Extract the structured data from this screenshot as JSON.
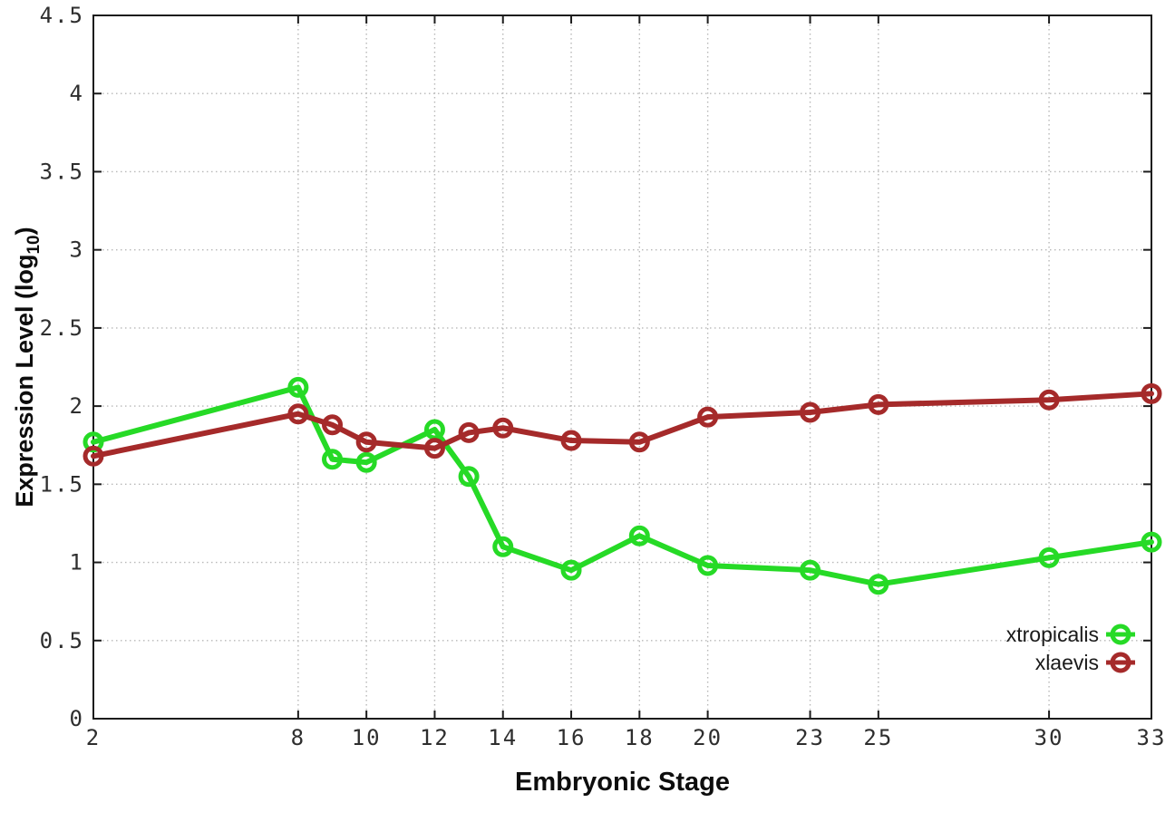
{
  "page": {
    "background": "#ffffff"
  },
  "chart_data": {
    "type": "line",
    "title": "",
    "xlabel": "Embryonic Stage",
    "ylabel": "Expression Level (log10)",
    "ylabel_parts": {
      "pre": "Expression Level (log",
      "sub": "10",
      "post": ")"
    },
    "x": [
      2,
      8,
      9,
      10,
      12,
      13,
      14,
      16,
      18,
      20,
      23,
      25,
      30,
      33
    ],
    "series": [
      {
        "name": "xtropicalis",
        "color": "#26da26",
        "marker": "open-circle",
        "values": [
          1.77,
          2.12,
          1.66,
          1.64,
          1.85,
          1.55,
          1.1,
          0.95,
          1.17,
          0.98,
          0.95,
          0.86,
          1.03,
          1.13
        ]
      },
      {
        "name": "xlaevis",
        "color": "#a52a2a",
        "marker": "open-circle",
        "values": [
          1.68,
          1.95,
          1.88,
          1.77,
          1.73,
          1.83,
          1.86,
          1.78,
          1.77,
          1.93,
          1.96,
          2.01,
          2.04,
          2.08
        ]
      }
    ],
    "xlim": [
      2,
      33
    ],
    "ylim": [
      0,
      4.5
    ],
    "xticks": [
      2,
      8,
      10,
      12,
      14,
      16,
      18,
      20,
      23,
      25,
      30,
      33
    ],
    "yticks": [
      0,
      0.5,
      1,
      1.5,
      2,
      2.5,
      3,
      3.5,
      4,
      4.5
    ],
    "grid": true,
    "grid_style": "dotted",
    "grid_color": "#b8b8b8",
    "axis_color": "#1c1c1c",
    "tick_label_color": "#2e2e2e",
    "legend": {
      "position": "inside-bottom-right",
      "entries": [
        "xtropicalis",
        "xlaevis"
      ]
    }
  }
}
